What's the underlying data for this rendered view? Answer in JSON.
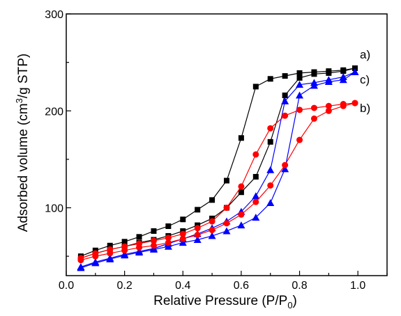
{
  "chart_data": {
    "type": "line",
    "xlabel": "Relative Pressure (P/P",
    "xlabel_sub": "0",
    "xlabel_end": ")",
    "ylabel": "Adsorbed volume (cm",
    "ylabel_sup": "3",
    "ylabel_end": "/g STP)",
    "xlim": [
      0.0,
      1.1
    ],
    "ylim": [
      30,
      300
    ],
    "xticks": [
      "0.0",
      "0.2",
      "0.4",
      "0.6",
      "0.8",
      "1.0"
    ],
    "xtick_values": [
      0.0,
      0.2,
      0.4,
      0.6,
      0.8,
      1.0
    ],
    "yticks": [
      "100",
      "200",
      "300"
    ],
    "ytick_values": [
      100,
      200,
      300
    ],
    "grid": false,
    "legend": "none",
    "series": [
      {
        "name": "a)",
        "color": "#000000",
        "marker": "square",
        "adsorption": {
          "x": [
            0.05,
            0.1,
            0.15,
            0.2,
            0.25,
            0.3,
            0.35,
            0.4,
            0.45,
            0.5,
            0.55,
            0.6,
            0.65,
            0.7,
            0.75,
            0.8,
            0.85,
            0.9,
            0.95,
            0.99
          ],
          "y": [
            48,
            53,
            57,
            60,
            64,
            67,
            71,
            76,
            82,
            89,
            100,
            116,
            132,
            168,
            216,
            234,
            238,
            239,
            241,
            244
          ]
        },
        "desorption": {
          "x": [
            0.99,
            0.95,
            0.9,
            0.85,
            0.8,
            0.75,
            0.7,
            0.65,
            0.6,
            0.55,
            0.5,
            0.45,
            0.4,
            0.35,
            0.3,
            0.25,
            0.2,
            0.15,
            0.1,
            0.05
          ],
          "y": [
            244,
            242,
            241,
            240,
            239,
            236,
            233,
            225,
            172,
            128,
            108,
            98,
            88,
            81,
            76,
            70,
            65,
            61,
            56,
            50
          ]
        }
      },
      {
        "name": "c)",
        "color": "#0000ff",
        "marker": "triangle",
        "adsorption": {
          "x": [
            0.05,
            0.1,
            0.15,
            0.2,
            0.25,
            0.3,
            0.35,
            0.4,
            0.45,
            0.5,
            0.55,
            0.6,
            0.65,
            0.7,
            0.75,
            0.8,
            0.85,
            0.9,
            0.95,
            0.99
          ],
          "y": [
            38,
            43,
            47,
            51,
            54,
            57,
            60,
            64,
            67,
            71,
            76,
            82,
            90,
            105,
            140,
            216,
            226,
            230,
            232,
            240
          ]
        },
        "desorption": {
          "x": [
            0.99,
            0.95,
            0.9,
            0.85,
            0.8,
            0.75,
            0.7,
            0.65,
            0.6,
            0.55,
            0.5,
            0.45,
            0.4,
            0.35,
            0.3,
            0.25,
            0.2,
            0.15,
            0.1,
            0.05
          ],
          "y": [
            240,
            235,
            232,
            229,
            227,
            210,
            139,
            112,
            96,
            86,
            79,
            73,
            68,
            63,
            58,
            55,
            52,
            48,
            44,
            39
          ]
        }
      },
      {
        "name": "b)",
        "color": "#ff0000",
        "marker": "circle",
        "adsorption": {
          "x": [
            0.05,
            0.1,
            0.15,
            0.2,
            0.25,
            0.3,
            0.35,
            0.4,
            0.45,
            0.5,
            0.55,
            0.6,
            0.65,
            0.7,
            0.75,
            0.8,
            0.85,
            0.9,
            0.95,
            0.99
          ],
          "y": [
            46,
            50,
            53,
            56,
            59,
            61,
            64,
            68,
            72,
            77,
            84,
            93,
            106,
            123,
            144,
            170,
            192,
            200,
            205,
            208
          ]
        },
        "desorption": {
          "x": [
            0.99,
            0.95,
            0.9,
            0.85,
            0.8,
            0.75,
            0.7,
            0.65,
            0.6,
            0.55,
            0.5,
            0.45,
            0.4,
            0.35,
            0.3,
            0.25,
            0.2,
            0.15,
            0.1,
            0.05
          ],
          "y": [
            208,
            207,
            205,
            203,
            201,
            195,
            182,
            155,
            122,
            100,
            86,
            79,
            73,
            69,
            66,
            63,
            60,
            57,
            53,
            48
          ]
        }
      }
    ]
  }
}
